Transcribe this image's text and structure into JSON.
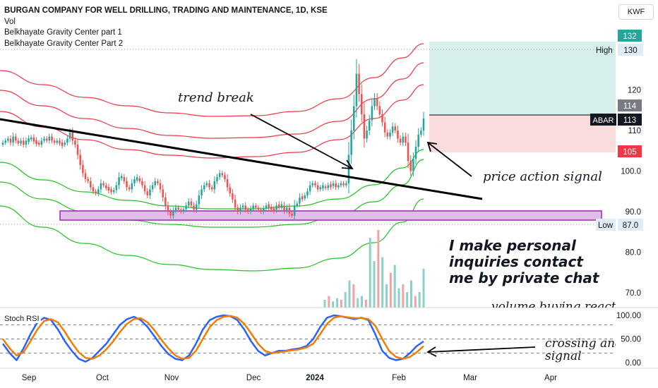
{
  "header": {
    "title": "BURGAN COMPANY FOR WELL DRILLING, TRADING AND MAINTENANCE, 1D, KSE",
    "indicators": [
      "Vol",
      "Belkhayate Gravity Center part 1",
      "Belkhayate Gravity Center Part 2"
    ],
    "currency": "KWF"
  },
  "annotations": {
    "trend_break": "trend break",
    "price_action": "price action signal",
    "inquiries": [
      "I make personal",
      "inquiries contact",
      "me by private chat"
    ],
    "volume": "volume buying reacti",
    "crossing_line1": "crossing and",
    "crossing_line2": "signal"
  },
  "price_labels": {
    "high_text": "High",
    "high_value": "130",
    "low_text": "Low",
    "low_value": "87.0",
    "target": "132",
    "upper": "114",
    "ticker": "ABAR",
    "last": "113",
    "stop": "105"
  },
  "colors": {
    "bull": "#26a69a",
    "bear": "#ef5350",
    "bull_vol": "#8cd0c8",
    "bear_vol": "#f2a3a1",
    "band_upper": "#f23645",
    "band_lower": "#22c322",
    "stoch_k": "#2962ff",
    "stoch_d": "#f57c00",
    "zone_fill": "#e1bee7",
    "zone_border": "#9c27b0",
    "profit": "#d7efea",
    "loss": "#fadcdc"
  },
  "chart_data": [
    {
      "type": "candlestick",
      "title": "BURGAN COMPANY FOR WELL DRILLING, TRADING AND MAINTENANCE, 1D, KSE",
      "x_labels": [
        "Sep",
        "Oct",
        "Nov",
        "Dec",
        "2024",
        "Feb",
        "Mar",
        "Apr"
      ],
      "y_ticks": [
        "120",
        "110",
        "100.0",
        "90.0",
        "80.0",
        "70.0"
      ],
      "y_tick_values": [
        120,
        110,
        100,
        90,
        80,
        70
      ],
      "ylim": [
        66,
        141
      ],
      "high": 130,
      "low": 87,
      "last": 113,
      "candles_close": [
        107,
        107.5,
        108,
        107,
        108.5,
        107.5,
        106.8,
        107.5,
        106.5,
        107.5,
        107.8,
        108.3,
        107.3,
        107,
        106.5,
        107.5,
        108,
        107.5,
        108.5,
        107.5,
        107,
        107.5,
        106.8,
        106.5,
        107,
        108,
        109.5,
        107.5,
        106.5,
        104,
        101.5,
        99.5,
        98,
        97.5,
        96,
        95,
        94.5,
        95.5,
        97,
        96.5,
        95.8,
        95.5,
        94.8,
        95.3,
        96.5,
        98.5,
        98.5,
        97.5,
        96,
        95.5,
        97,
        98,
        98.2,
        97.5,
        96.5,
        95,
        94,
        95.5,
        96.5,
        97.5,
        97,
        95.5,
        93.5,
        91.5,
        90,
        89,
        90.2,
        91,
        90.5,
        90,
        90.6,
        91.5,
        92.5,
        91.5,
        90.5,
        91.8,
        94,
        95.5,
        96.5,
        97,
        96,
        95.5,
        97.5,
        98.5,
        99.5,
        99,
        98,
        96,
        94.5,
        93,
        91,
        90,
        91,
        91.5,
        90.5,
        90,
        90.8,
        91.5,
        91,
        90.5,
        90,
        90.8,
        91.5,
        91.2,
        90.5,
        90.4,
        91.5,
        91.2,
        91.5,
        90.2,
        91,
        89.5,
        89,
        91.5,
        92,
        93.5,
        93.3,
        94,
        95,
        96.5,
        97,
        96.5,
        95.5,
        96,
        96.2,
        95.8,
        96.5,
        96.3,
        97,
        96,
        96.5,
        97,
        96.5,
        97,
        104,
        110,
        116,
        124,
        119,
        114,
        108,
        110,
        112.5,
        116,
        118,
        116,
        114,
        112,
        109.5,
        108.5,
        109.5,
        111,
        110,
        108,
        107,
        108.5,
        107,
        102.5,
        100,
        103,
        106,
        109,
        110,
        113
      ]
    },
    {
      "type": "bar",
      "title": "Vol",
      "volume_relative": [
        0.1,
        0.15,
        0.08,
        0.12,
        0.1,
        0.2,
        0.35,
        0.3,
        0.12,
        0.15,
        0.1,
        0.9,
        0.6,
        1.0,
        0.65,
        0.3,
        0.45,
        0.55,
        0.25,
        0.3,
        0.2,
        0.35,
        0.15,
        0.2,
        0.5
      ]
    },
    {
      "type": "line",
      "title": "Stoch RSI",
      "y_ticks": [
        "100.00",
        "50.00",
        "0.00"
      ],
      "y_tick_values": [
        100,
        50,
        0
      ],
      "ylim": [
        -5,
        105
      ],
      "series": [
        {
          "values": [
            40,
            20,
            5,
            30,
            60,
            85,
            95,
            90,
            70,
            45,
            25,
            8,
            2,
            10,
            25,
            40,
            60,
            80,
            92,
            97,
            90,
            75,
            55,
            35,
            18,
            8,
            5,
            15,
            40,
            70,
            90,
            97,
            100,
            98,
            90,
            70,
            45,
            25,
            15,
            20,
            25,
            25,
            28,
            30,
            35,
            50,
            75,
            95,
            100,
            98,
            95,
            92,
            95,
            90,
            60,
            25,
            10,
            5,
            8,
            20,
            35,
            45
          ]
        },
        {
          "values": [
            50,
            30,
            15,
            22,
            45,
            70,
            88,
            92,
            85,
            65,
            42,
            22,
            10,
            8,
            15,
            28,
            45,
            65,
            82,
            92,
            94,
            85,
            68,
            48,
            30,
            15,
            8,
            10,
            25,
            50,
            75,
            90,
            97,
            99,
            95,
            82,
            62,
            40,
            25,
            20,
            22,
            24,
            26,
            28,
            32,
            40,
            60,
            82,
            95,
            98,
            96,
            94,
            94,
            92,
            78,
            50,
            25,
            12,
            8,
            12,
            22,
            35
          ]
        }
      ]
    }
  ]
}
